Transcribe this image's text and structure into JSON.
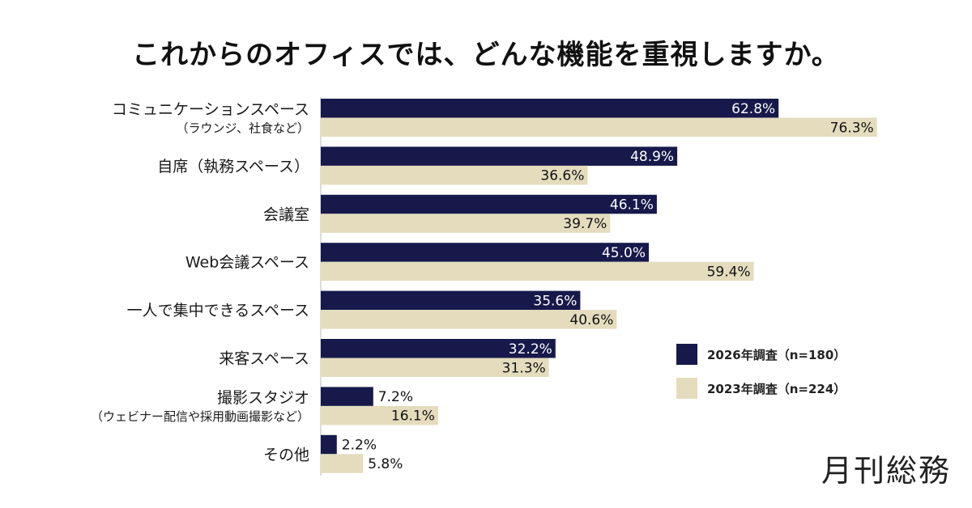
{
  "chart_data": {
    "type": "bar",
    "orientation": "horizontal",
    "title": "これからのオフィスでは、どんな機能を重視しますか。",
    "categories": [
      {
        "label": "コミュニケーションスペース",
        "sublabel": "（ラウンジ、社食など）"
      },
      {
        "label": "自席（執務スペース）",
        "sublabel": ""
      },
      {
        "label": "会議室",
        "sublabel": ""
      },
      {
        "label": "Web会議スペース",
        "sublabel": ""
      },
      {
        "label": "一人で集中できるスペース",
        "sublabel": ""
      },
      {
        "label": "来客スペース",
        "sublabel": ""
      },
      {
        "label": "撮影スタジオ",
        "sublabel": "（ウェビナー配信や採用動画撮影など）"
      },
      {
        "label": "その他",
        "sublabel": ""
      }
    ],
    "series": [
      {
        "name": "2026年調査（n=180）",
        "color": "#16194a",
        "values": [
          62.8,
          48.9,
          46.1,
          45.0,
          35.6,
          32.2,
          7.2,
          2.2
        ],
        "labels": [
          "62.8%",
          "48.9%",
          "46.1%",
          "45.0%",
          "35.6%",
          "32.2%",
          "7.2%",
          "2.2%"
        ]
      },
      {
        "name": "2023年調査（n=224）",
        "color": "#e5dcbe",
        "values": [
          76.3,
          36.6,
          39.7,
          59.4,
          40.6,
          31.3,
          16.1,
          5.8
        ],
        "labels": [
          "76.3%",
          "36.6%",
          "39.7%",
          "59.4%",
          "40.6%",
          "31.3%",
          "16.1%",
          "5.8%"
        ]
      }
    ],
    "xlim": [
      0,
      100
    ],
    "unit": "%",
    "legend_position": "right",
    "grid": false
  },
  "brand": "月刊総務"
}
